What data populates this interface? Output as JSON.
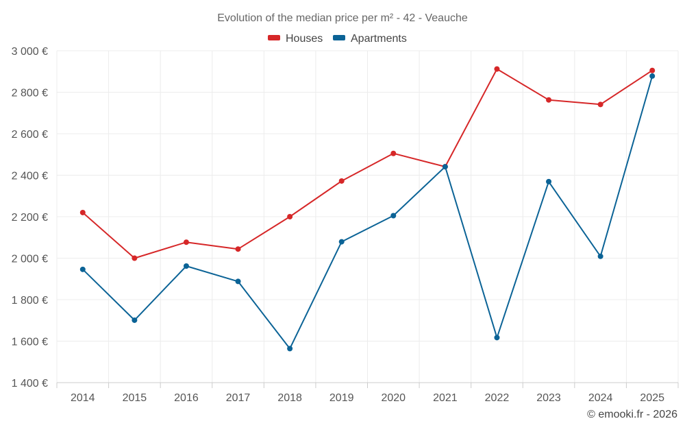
{
  "chart_data": {
    "type": "line",
    "title": "Evolution of the median price per m² - 42 - Veauche",
    "categories": [
      "2014",
      "2015",
      "2016",
      "2017",
      "2018",
      "2019",
      "2020",
      "2021",
      "2022",
      "2023",
      "2024",
      "2025"
    ],
    "series": [
      {
        "name": "Houses",
        "color": "#d62728",
        "values": [
          2220,
          2000,
          2077,
          2044,
          2200,
          2372,
          2505,
          2441,
          2912,
          2763,
          2741,
          2905
        ]
      },
      {
        "name": "Apartments",
        "color": "#0b6396",
        "values": [
          1946,
          1701,
          1962,
          1888,
          1564,
          2079,
          2205,
          2441,
          1617,
          2369,
          2009,
          2878
        ]
      }
    ],
    "ylim": [
      1400,
      3000
    ],
    "yticks": [
      1400,
      1600,
      1800,
      2000,
      2200,
      2400,
      2600,
      2800,
      3000
    ],
    "ytick_labels": [
      "1 400 €",
      "1 600 €",
      "1 800 €",
      "2 000 €",
      "2 200 €",
      "2 400 €",
      "2 600 €",
      "2 800 €",
      "3 000 €"
    ],
    "grid": true,
    "legend_position": "top-center",
    "credit": "© emooki.fr - 2026"
  }
}
